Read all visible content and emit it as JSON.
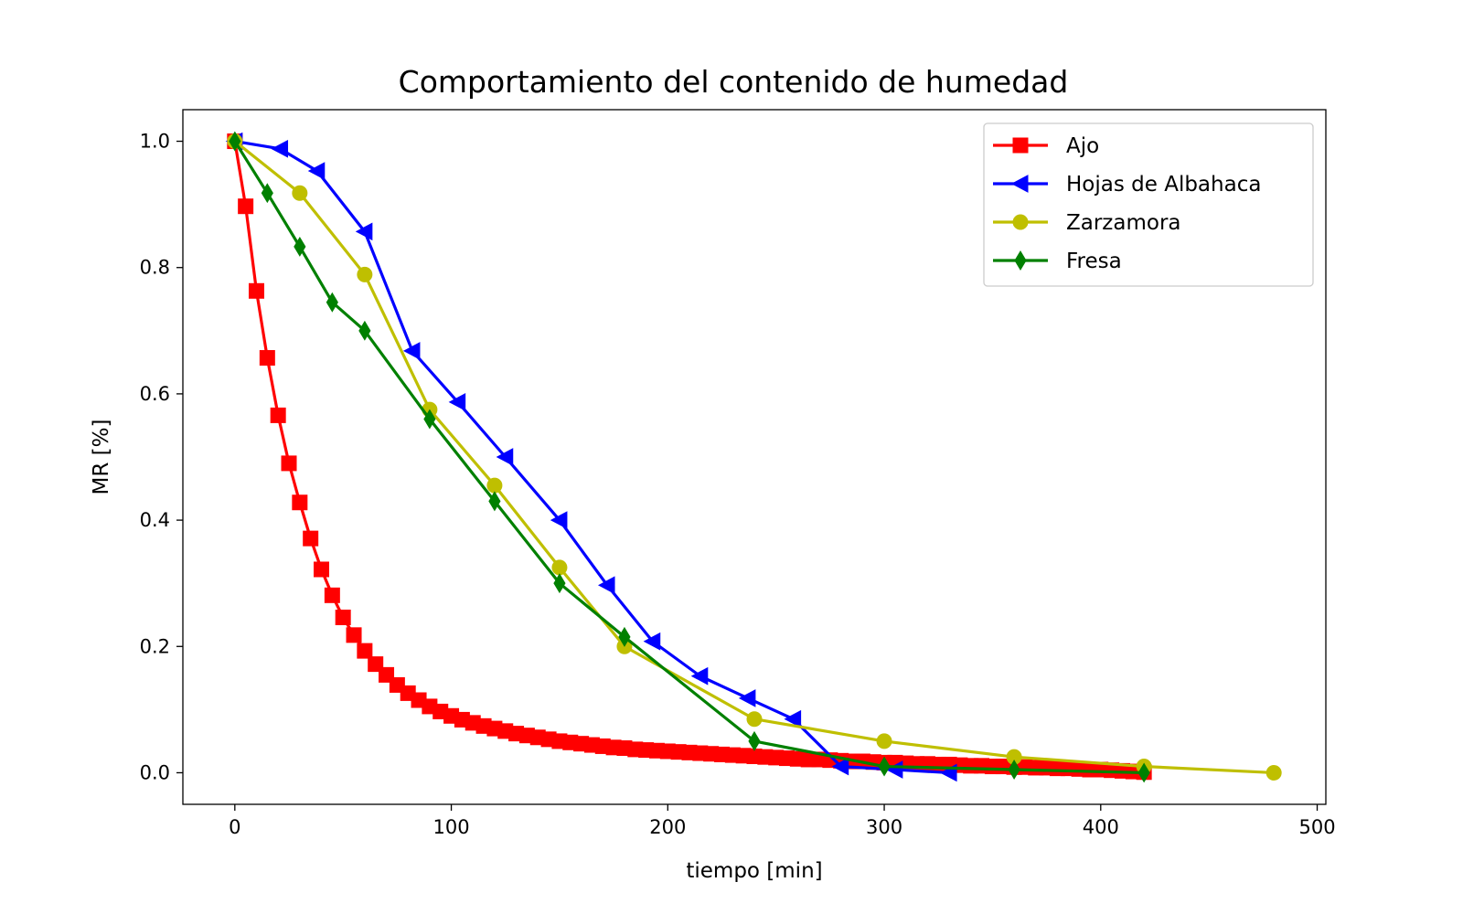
{
  "chart_data": {
    "type": "line",
    "title": "Comportamiento del contenido de humedad",
    "xlabel": "tiempo [min]",
    "ylabel": "MR [%]",
    "xlim": [
      -24,
      504
    ],
    "ylim": [
      -0.05,
      1.05
    ],
    "xticks": [
      0,
      100,
      200,
      300,
      400,
      500
    ],
    "yticks": [
      0.0,
      0.2,
      0.4,
      0.6,
      0.8,
      1.0
    ],
    "xtick_labels": [
      "0",
      "100",
      "200",
      "300",
      "400",
      "500"
    ],
    "ytick_labels": [
      "0.0",
      "0.2",
      "0.4",
      "0.6",
      "0.8",
      "1.0"
    ],
    "grid": false,
    "legend_position": "top-right",
    "series": [
      {
        "name": "Ajo",
        "color": "#ff0000",
        "marker": "square",
        "x": [
          0,
          5,
          10,
          15,
          20,
          25,
          30,
          35,
          40,
          45,
          50,
          55,
          60,
          65,
          70,
          75,
          80,
          85,
          90,
          95,
          100,
          105,
          110,
          115,
          120,
          125,
          130,
          135,
          140,
          145,
          150,
          155,
          160,
          165,
          170,
          175,
          180,
          185,
          190,
          195,
          200,
          205,
          210,
          215,
          220,
          225,
          230,
          235,
          240,
          245,
          250,
          255,
          260,
          265,
          270,
          275,
          280,
          285,
          290,
          295,
          300,
          305,
          310,
          315,
          320,
          325,
          330,
          335,
          340,
          345,
          350,
          355,
          360,
          365,
          370,
          375,
          380,
          385,
          390,
          395,
          400,
          405,
          410,
          415,
          420
        ],
        "y": [
          1.0,
          0.897,
          0.763,
          0.657,
          0.566,
          0.49,
          0.428,
          0.371,
          0.322,
          0.281,
          0.246,
          0.218,
          0.193,
          0.172,
          0.155,
          0.139,
          0.126,
          0.115,
          0.105,
          0.097,
          0.09,
          0.084,
          0.079,
          0.074,
          0.07,
          0.066,
          0.062,
          0.059,
          0.056,
          0.053,
          0.05,
          0.048,
          0.046,
          0.044,
          0.042,
          0.04,
          0.039,
          0.037,
          0.036,
          0.035,
          0.034,
          0.033,
          0.032,
          0.031,
          0.03,
          0.029,
          0.028,
          0.027,
          0.026,
          0.025,
          0.024,
          0.023,
          0.022,
          0.021,
          0.021,
          0.02,
          0.019,
          0.018,
          0.018,
          0.017,
          0.016,
          0.016,
          0.015,
          0.014,
          0.014,
          0.013,
          0.013,
          0.012,
          0.011,
          0.011,
          0.01,
          0.01,
          0.009,
          0.009,
          0.008,
          0.008,
          0.007,
          0.007,
          0.006,
          0.005,
          0.005,
          0.004,
          0.003,
          0.002,
          0.001
        ]
      },
      {
        "name": "Hojas de Albahaca",
        "color": "#0000ff",
        "marker": "triangle-left",
        "x": [
          0,
          21,
          38,
          60,
          82,
          103,
          125,
          150,
          172,
          193,
          215,
          237,
          258,
          280,
          305,
          330
        ],
        "y": [
          1.0,
          0.988,
          0.953,
          0.857,
          0.668,
          0.587,
          0.5,
          0.4,
          0.297,
          0.208,
          0.153,
          0.118,
          0.085,
          0.01,
          0.005,
          0.0
        ]
      },
      {
        "name": "Zarzamora",
        "color": "#bfbf00",
        "marker": "circle",
        "x": [
          0,
          30,
          60,
          90,
          120,
          150,
          180,
          240,
          300,
          360,
          420,
          480
        ],
        "y": [
          1.0,
          0.918,
          0.789,
          0.575,
          0.455,
          0.325,
          0.2,
          0.085,
          0.05,
          0.025,
          0.01,
          0.0
        ]
      },
      {
        "name": "Fresa",
        "color": "#008000",
        "marker": "thin-diamond",
        "x": [
          0,
          15,
          30,
          45,
          60,
          90,
          120,
          150,
          180,
          240,
          300,
          360,
          420
        ],
        "y": [
          1.0,
          0.918,
          0.833,
          0.745,
          0.7,
          0.56,
          0.43,
          0.3,
          0.215,
          0.05,
          0.01,
          0.005,
          0.0
        ]
      }
    ]
  }
}
